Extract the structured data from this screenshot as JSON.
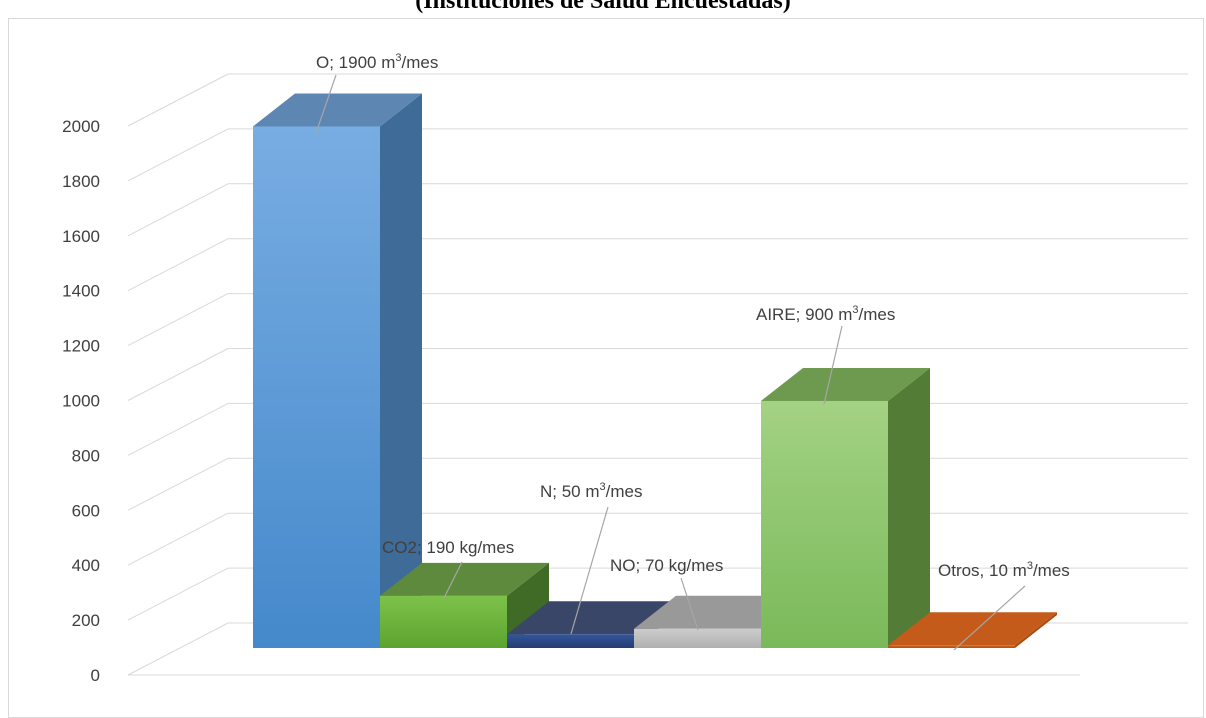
{
  "chart_data": {
    "type": "bar",
    "title": "(Instituciones de Salud Encuestadas)",
    "ylim": [
      0,
      2000
    ],
    "yticks": [
      "0",
      "200",
      "400",
      "600",
      "800",
      "1000",
      "1200",
      "1400",
      "1600",
      "1800",
      "2000"
    ],
    "grid": true,
    "categories": [
      "O",
      "CO2",
      "N",
      "NO",
      "AIRE",
      "Otros"
    ],
    "values": [
      1900,
      190,
      50,
      70,
      900,
      10
    ],
    "data_labels": [
      {
        "pre": "O; 1900 m",
        "sup": "3",
        "post": "/mes"
      },
      {
        "pre": "CO2; 190 kg/mes",
        "sup": "",
        "post": ""
      },
      {
        "pre": "N; 50 m",
        "sup": "3",
        "post": "/mes"
      },
      {
        "pre": "NO; 70 kg/mes",
        "sup": "",
        "post": ""
      },
      {
        "pre": "AIRE; 900 m",
        "sup": "3",
        "post": "/mes"
      },
      {
        "pre": "Otros, 10 m",
        "sup": "3",
        "post": "/mes"
      }
    ],
    "colors": [
      {
        "front": "#5b9bd5",
        "frontLight": "#78ade2",
        "frontDark": "#4589cb",
        "side": "#3e6b97",
        "top": "#5d86b3"
      },
      {
        "front": "#6eb33d",
        "frontLight": "#7cc24a",
        "frontDark": "#5da42f",
        "side": "#3f6b26",
        "top": "#5d8a3d"
      },
      {
        "front": "#2e4a86",
        "frontLight": "#34569a",
        "frontDark": "#243d73",
        "side": "#3a4668",
        "top": "#3a4668"
      },
      {
        "front": "#bfbfbf",
        "frontLight": "#cccccc",
        "frontDark": "#b0b0b0",
        "side": "#8f8f8f",
        "top": "#999999"
      },
      {
        "front": "#8cc56a",
        "frontLight": "#a3d283",
        "frontDark": "#7ab95a",
        "side": "#537d36",
        "top": "#6d9a4f"
      },
      {
        "front": "#c55a11",
        "frontLight": "#d06a22",
        "frontDark": "#b34e0c",
        "side": "#a84b0e",
        "top": "#c45b1a"
      }
    ]
  }
}
